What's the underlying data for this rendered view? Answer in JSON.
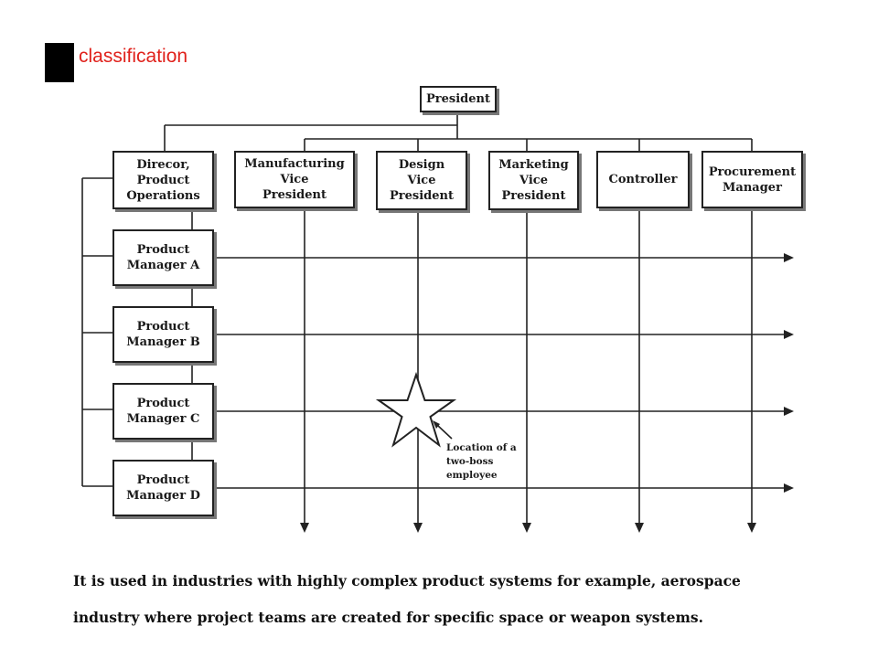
{
  "header": {
    "title": "classification"
  },
  "diagram": {
    "top": "President",
    "functional_heads": [
      "Direcor,\nProduct\nOperations",
      "Manufacturing\nVice\nPresident",
      "Design\nVice\nPresident",
      "Marketing\nVice\nPresident",
      "Controller",
      "Procurement\nManager"
    ],
    "product_managers": [
      "Product\nManager A",
      "Product\nManager B",
      "Product\nManager C",
      "Product\nManager D"
    ],
    "annotation": "Location of a\ntwo-boss\nemployee"
  },
  "body": {
    "line1": "It is used in industries with highly complex product systems for example, aerospace",
    "line2": "industry where project teams are created for specific space or weapon systems."
  }
}
